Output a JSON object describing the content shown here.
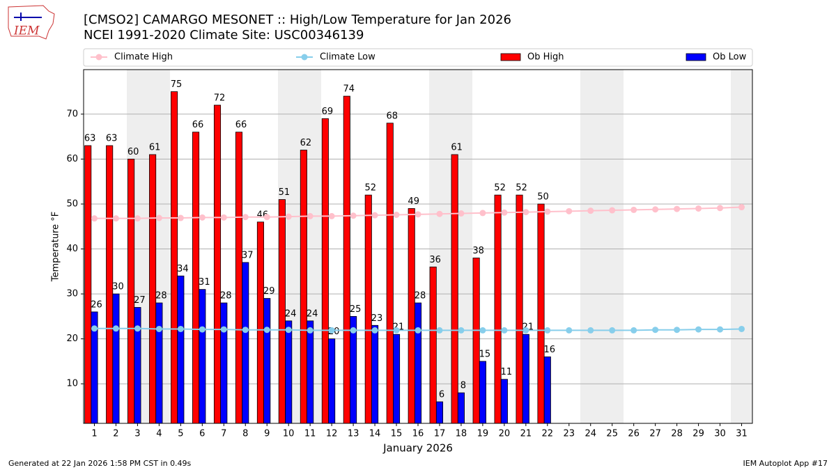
{
  "logo_text": "IEM",
  "footer_left": "Generated at 22 Jan 2026 1:58 PM CST in 0.49s",
  "footer_right": "IEM Autoplot App #17",
  "chart_data": {
    "type": "bar",
    "title": "[CMSO2] CAMARGO MESONET :: High/Low Temperature for Jan 2026",
    "subtitle": "NCEI 1991-2020 Climate Site: USC00346139",
    "x_label": "January 2026",
    "y_label": "Temperature °F",
    "categories": [
      "1",
      "2",
      "3",
      "4",
      "5",
      "6",
      "7",
      "8",
      "9",
      "10",
      "11",
      "12",
      "13",
      "14",
      "15",
      "16",
      "17",
      "18",
      "19",
      "20",
      "21",
      "22",
      "23",
      "24",
      "25",
      "26",
      "27",
      "28",
      "29",
      "30",
      "31"
    ],
    "ylim": [
      1.2,
      79.9
    ],
    "yticks": [
      10,
      20,
      30,
      40,
      50,
      60,
      70
    ],
    "grid": true,
    "series": [
      {
        "name": "Climate High",
        "type": "line",
        "color": "#ffc0cb",
        "values": [
          46.8,
          46.8,
          46.8,
          46.9,
          46.9,
          47.0,
          47.0,
          47.1,
          47.1,
          47.2,
          47.3,
          47.3,
          47.4,
          47.5,
          47.6,
          47.7,
          47.8,
          47.9,
          48.0,
          48.1,
          48.2,
          48.3,
          48.4,
          48.5,
          48.6,
          48.7,
          48.8,
          48.9,
          49.0,
          49.1,
          49.3
        ]
      },
      {
        "name": "Climate Low",
        "type": "line",
        "color": "#87ceeb",
        "values": [
          22.3,
          22.3,
          22.3,
          22.2,
          22.2,
          22.1,
          22.1,
          22.0,
          22.0,
          22.0,
          21.9,
          21.9,
          21.9,
          21.9,
          21.9,
          21.9,
          21.9,
          21.9,
          21.9,
          21.9,
          21.9,
          21.9,
          21.9,
          21.9,
          21.9,
          21.9,
          22.0,
          22.0,
          22.1,
          22.1,
          22.2
        ]
      },
      {
        "name": "Ob High",
        "type": "bar",
        "color": "#ff0000",
        "values": [
          63,
          63,
          60,
          61,
          75,
          66,
          72,
          66,
          46,
          51,
          62,
          69,
          74,
          52,
          68,
          49,
          36,
          61,
          38,
          52,
          52,
          50,
          null,
          null,
          null,
          null,
          null,
          null,
          null,
          null,
          null
        ]
      },
      {
        "name": "Ob Low",
        "type": "bar",
        "color": "#0000ff",
        "values": [
          26,
          30,
          27,
          28,
          34,
          31,
          28,
          37,
          29,
          24,
          24,
          20,
          25,
          23,
          21,
          28,
          6,
          8,
          15,
          11,
          21,
          16,
          null,
          null,
          null,
          null,
          null,
          null,
          null,
          null,
          null
        ]
      }
    ]
  }
}
